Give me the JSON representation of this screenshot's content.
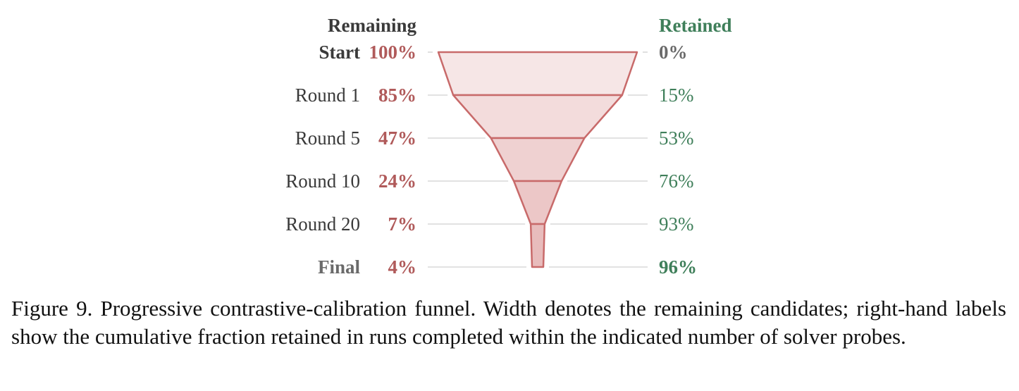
{
  "chart_data": {
    "type": "funnel",
    "headers": {
      "remaining": "Remaining",
      "retained": "Retained"
    },
    "stages": [
      "Start",
      "Round 1",
      "Round 5",
      "Round 10",
      "Round 20",
      "Final"
    ],
    "remaining_pct": [
      100,
      85,
      47,
      24,
      7,
      4
    ],
    "retained_pct": [
      0,
      15,
      53,
      76,
      93,
      96
    ],
    "remaining_labels": [
      "100%",
      "85%",
      "47%",
      "24%",
      "7%",
      "4%"
    ],
    "retained_labels": [
      "0%",
      "15%",
      "53%",
      "76%",
      "93%",
      "96%"
    ]
  },
  "colors": {
    "funnel_stroke": "#c86a6a",
    "funnel_fill_light": "#f6e6e6",
    "funnel_fill_dark": "#e8bcbc",
    "remaining_text": "#b05a5a",
    "retained_text": "#3f7f5a",
    "stage_text": "#3a3a3a",
    "header_text": "#3a3a3a",
    "muted_text": "#6a6a6a",
    "guide_line": "#d8d8d8"
  },
  "caption": "Figure 9.  Progressive contrastive-calibration funnel.  Width denotes the remaining candidates; right-hand labels show the cumulative fraction retained in runs completed within the indicated number of solver probes."
}
